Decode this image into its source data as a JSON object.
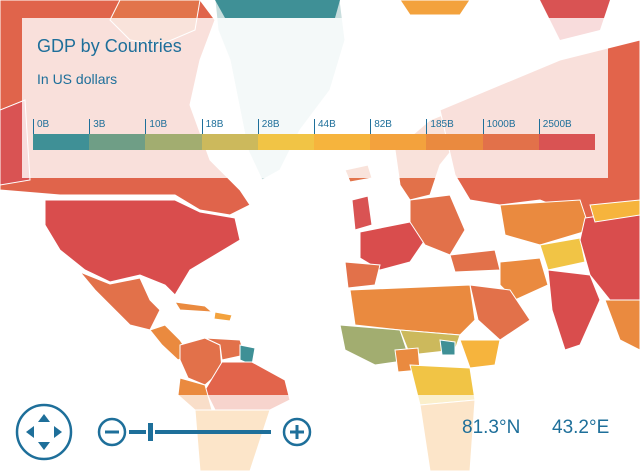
{
  "title": "GDP by Countries",
  "subtitle": "In US dollars",
  "legend": {
    "labels": [
      "0B",
      "3B",
      "10B",
      "18B",
      "28B",
      "44B",
      "82B",
      "185B",
      "1000B",
      "2500B"
    ],
    "colors": [
      "#3f9096",
      "#6f9e86",
      "#a2ad70",
      "#ccb95c",
      "#f1c445",
      "#f6b43d",
      "#f3a23d",
      "#ea8a3f",
      "#e2714a",
      "#d95353"
    ]
  },
  "coords": {
    "lat": "81.3°N",
    "lon": "43.2°E"
  },
  "zoom": {
    "level": 0.12
  },
  "icons": {
    "nav": "pan-control-icon",
    "minus": "zoom-out-icon",
    "plus": "zoom-in-icon"
  }
}
